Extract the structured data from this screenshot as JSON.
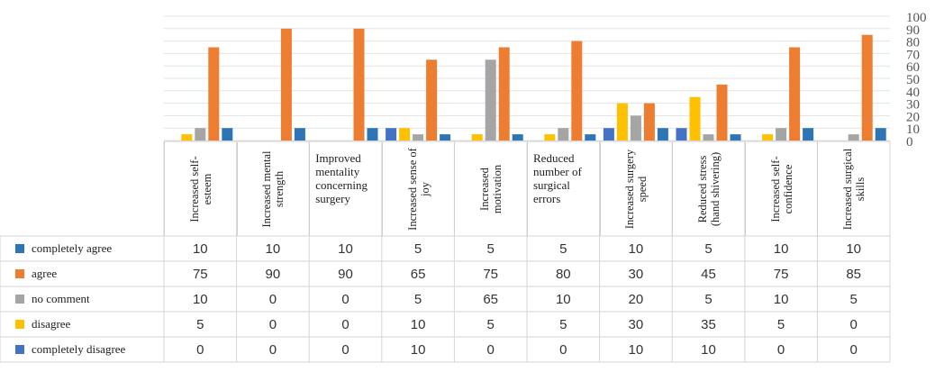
{
  "chart_data": {
    "type": "bar",
    "title": "",
    "xlabel": "",
    "ylabel": "",
    "ylim": [
      0,
      100
    ],
    "yticks": [
      0,
      10,
      20,
      30,
      40,
      50,
      60,
      70,
      80,
      90,
      100
    ],
    "grid": true,
    "legend": "left, as data table row headers",
    "categories": [
      "Increased self-esteem",
      "Increased mental strength",
      "Improved mentality concerning surgery",
      "Increased sense of joy",
      "Increased motivation",
      "Reduced number of surgical errors",
      "Increased surgery speed",
      "Reduced stress (hand shivering)",
      "Increased self-confidence",
      "Increased surgical skills"
    ],
    "series": [
      {
        "name": "completely agree",
        "color": "#2e75b6",
        "values": [
          10,
          10,
          10,
          5,
          5,
          5,
          10,
          5,
          10,
          10
        ]
      },
      {
        "name": "agree",
        "color": "#ed7d31",
        "values": [
          75,
          90,
          90,
          65,
          75,
          80,
          30,
          45,
          75,
          85
        ]
      },
      {
        "name": "no comment",
        "color": "#a5a5a5",
        "values": [
          10,
          0,
          0,
          5,
          65,
          10,
          20,
          5,
          10,
          5
        ]
      },
      {
        "name": "disagree",
        "color": "#ffc000",
        "values": [
          5,
          0,
          0,
          10,
          5,
          5,
          30,
          35,
          5,
          0
        ]
      },
      {
        "name": "completely disagree",
        "color": "#4472c4",
        "values": [
          0,
          0,
          0,
          10,
          0,
          0,
          10,
          10,
          0,
          0
        ]
      }
    ],
    "table_values": [
      [
        "10",
        "10",
        "10",
        "5",
        "5",
        "5",
        "10",
        "5",
        "10",
        "10"
      ],
      [
        "75",
        "90",
        "90",
        "65",
        "75",
        "80",
        "30",
        "45",
        "75",
        "85"
      ],
      [
        "10",
        "0",
        "0",
        "5",
        "65",
        "10",
        "20",
        "5",
        "10",
        "5"
      ],
      [
        "5",
        "0",
        "0",
        "10",
        "5",
        "5",
        "30",
        "35",
        "5",
        "0"
      ],
      [
        "0",
        "0",
        "0",
        "10",
        "0",
        "0",
        "10",
        "10",
        "0",
        "0"
      ]
    ]
  }
}
